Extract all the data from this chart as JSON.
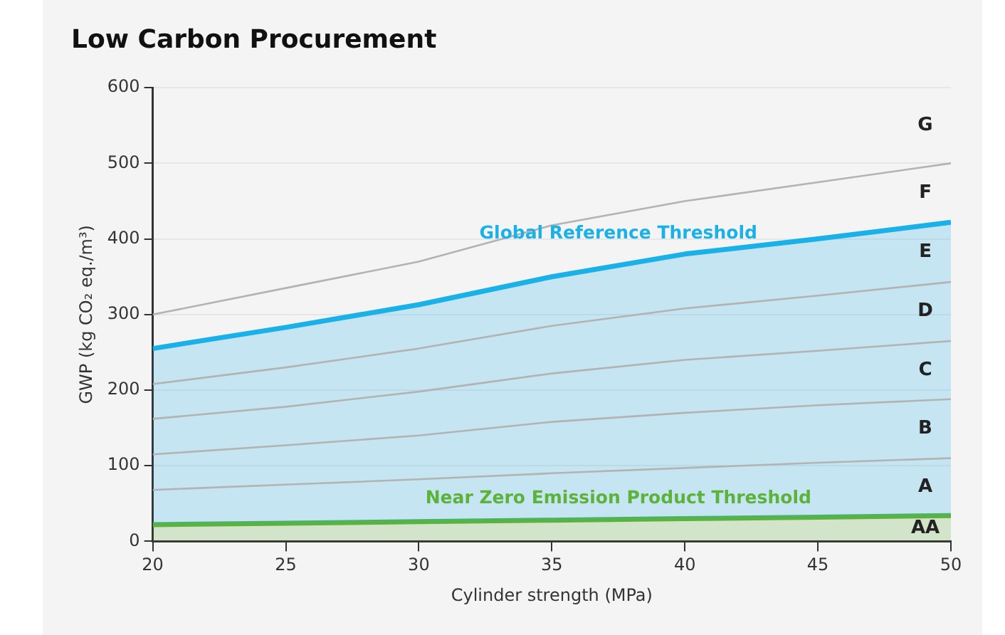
{
  "chart_data": {
    "type": "line",
    "title": "Low Carbon Procurement",
    "xlabel": "Cylinder strength (MPa)",
    "ylabel": "GWP (kg CO₂ eq./m³)",
    "x": [
      20,
      25,
      30,
      35,
      40,
      45,
      50
    ],
    "series": [
      {
        "type": "area",
        "name": "Near Zero Emission Product Threshold",
        "color": "#5db33a",
        "values": [
          22,
          24,
          26,
          28,
          30,
          32,
          34
        ]
      },
      {
        "color": "#b3b3b3",
        "values": [
          68,
          75,
          82,
          90,
          97,
          104,
          110
        ]
      },
      {
        "color": "#b3b3b3",
        "values": [
          115,
          127,
          140,
          158,
          170,
          180,
          188
        ]
      },
      {
        "color": "#b3b3b3",
        "values": [
          162,
          178,
          198,
          222,
          240,
          252,
          265
        ]
      },
      {
        "color": "#b3b3b3",
        "values": [
          208,
          230,
          255,
          285,
          308,
          325,
          343
        ]
      },
      {
        "type": "area",
        "name": "Global Reference Threshold",
        "color": "#1ab0e8",
        "values": [
          255,
          283,
          313,
          350,
          380,
          400,
          422
        ]
      },
      {
        "color": "#b3b3b3",
        "values": [
          300,
          335,
          370,
          418,
          450,
          475,
          500
        ]
      }
    ],
    "annotations": [
      "G",
      "F",
      "E",
      "D",
      "C",
      "B",
      "A",
      "AA"
    ],
    "xlim": [
      20,
      50
    ],
    "xticks": [
      20,
      25,
      30,
      35,
      40,
      45,
      50
    ],
    "ylim": [
      0,
      600
    ],
    "yticks": [
      0,
      100,
      200,
      300,
      400,
      500,
      600
    ],
    "grid": "y",
    "legend": false,
    "marker": "none",
    "line_style": "solid"
  }
}
